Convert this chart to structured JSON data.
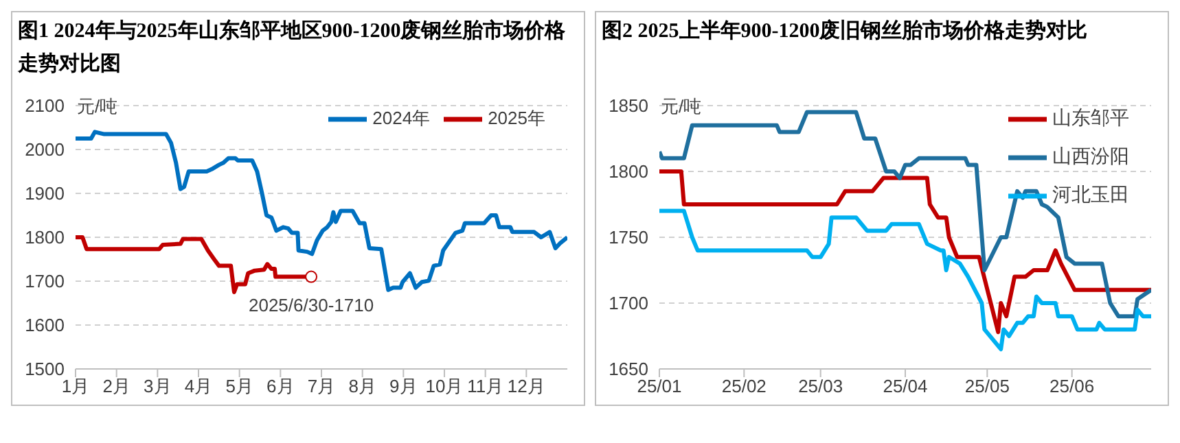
{
  "chart_data": [
    {
      "type": "line",
      "title": "图1 2024年与2025年山东邹平地区900-1200废钢丝胎市场价格走势对比图",
      "ylabel": "元/吨",
      "xlim": [
        1,
        13
      ],
      "xticks": [
        {
          "value": 1,
          "label": "1月"
        },
        {
          "value": 2,
          "label": "2月"
        },
        {
          "value": 3,
          "label": "3月"
        },
        {
          "value": 4,
          "label": "4月"
        },
        {
          "value": 5,
          "label": "5月"
        },
        {
          "value": 6,
          "label": "6月"
        },
        {
          "value": 7,
          "label": "7月"
        },
        {
          "value": 8,
          "label": "8月"
        },
        {
          "value": 9,
          "label": "9月"
        },
        {
          "value": 10,
          "label": "10月"
        },
        {
          "value": 11,
          "label": "11月"
        },
        {
          "value": 12,
          "label": "12月"
        }
      ],
      "ylim": [
        1500,
        2100
      ],
      "yticks": [
        1500,
        1600,
        1700,
        1800,
        1900,
        2000,
        2100
      ],
      "grid": "y",
      "legend": "top right",
      "line_style": "solid",
      "series": [
        {
          "name": "2024年",
          "color": "#0070c0",
          "x": [
            1,
            1.38,
            1.47,
            1.7,
            3.21,
            3.33,
            3.45,
            3.56,
            3.65,
            3.76,
            4.2,
            4.32,
            4.5,
            4.61,
            4.73,
            4.9,
            4.96,
            5.31,
            5.43,
            5.55,
            5.66,
            5.78,
            5.9,
            6.07,
            6.19,
            6.28,
            6.42,
            6.44,
            6.65,
            6.77,
            6.89,
            7.03,
            7.14,
            7.24,
            7.29,
            7.35,
            7.47,
            7.76,
            7.93,
            8.05,
            8.17,
            8.46,
            8.63,
            8.75,
            8.93,
            8.98,
            9.16,
            9.3,
            9.45,
            9.62,
            9.74,
            9.89,
            9.97,
            10.27,
            10.44,
            10.5,
            10.97,
            11.14,
            11.26,
            11.34,
            11.61,
            11.66,
            12.19,
            12.36,
            12.57,
            12.71,
            12.83,
            13
          ],
          "values": [
            2025,
            2025,
            2040,
            2035,
            2035,
            2015,
            1970,
            1910,
            1915,
            1950,
            1950,
            1955,
            1965,
            1970,
            1980,
            1980,
            1975,
            1975,
            1950,
            1900,
            1850,
            1845,
            1815,
            1823,
            1820,
            1810,
            1810,
            1770,
            1767,
            1762,
            1793,
            1815,
            1823,
            1835,
            1857,
            1835,
            1860,
            1860,
            1832,
            1832,
            1775,
            1773,
            1680,
            1685,
            1685,
            1698,
            1718,
            1685,
            1698,
            1701,
            1735,
            1738,
            1770,
            1810,
            1815,
            1832,
            1832,
            1850,
            1850,
            1823,
            1823,
            1812,
            1812,
            1800,
            1812,
            1775,
            1787,
            1800
          ]
        },
        {
          "name": "2025年",
          "color": "#c00000",
          "x": [
            1,
            1.17,
            1.27,
            3.04,
            3.13,
            3.56,
            3.62,
            4.07,
            4.23,
            4.38,
            4.5,
            4.79,
            4.87,
            4.94,
            5.14,
            5.21,
            5.37,
            5.6,
            5.68,
            5.78,
            5.86,
            5.88,
            6.75
          ],
          "values": [
            1800,
            1800,
            1773,
            1773,
            1783,
            1785,
            1796,
            1796,
            1770,
            1750,
            1735,
            1735,
            1675,
            1693,
            1693,
            1718,
            1724,
            1726,
            1739,
            1728,
            1728,
            1710,
            1710
          ]
        }
      ],
      "annotations": [
        {
          "text": "2025/6/30-1710",
          "x": 6.75,
          "y": 1710
        }
      ]
    },
    {
      "type": "line",
      "title": "图2 2025上半年900-1200废旧钢丝胎市场价格走势对比",
      "ylabel": "元/吨",
      "xlim": [
        "2025-01-01",
        "2025-06-30"
      ],
      "xticks": [
        {
          "value": "2025-01-01",
          "label": "25/01"
        },
        {
          "value": "2025-02-01",
          "label": "25/02"
        },
        {
          "value": "2025-03-01",
          "label": "25/03"
        },
        {
          "value": "2025-04-01",
          "label": "25/04"
        },
        {
          "value": "2025-05-01",
          "label": "25/05"
        },
        {
          "value": "2025-06-01",
          "label": "25/06"
        }
      ],
      "ylim": [
        1650,
        1850
      ],
      "yticks": [
        1650,
        1700,
        1750,
        1800,
        1850
      ],
      "grid": "y",
      "legend": "top right",
      "line_style": "solid",
      "series": [
        {
          "name": "山东邹平",
          "color": "#c00000",
          "x": [
            "2025-01-01",
            "2025-01-09",
            "2025-01-10",
            "2025-03-07",
            "2025-03-10",
            "2025-03-20",
            "2025-03-24",
            "2025-04-09",
            "2025-04-10",
            "2025-04-13",
            "2025-04-16",
            "2025-04-17",
            "2025-04-20",
            "2025-04-28",
            "2025-05-05",
            "2025-05-06",
            "2025-05-08",
            "2025-05-11",
            "2025-05-15",
            "2025-05-18",
            "2025-05-23",
            "2025-05-26",
            "2025-05-28",
            "2025-06-02",
            "2025-06-30"
          ],
          "values": [
            1800,
            1800,
            1775,
            1775,
            1785,
            1785,
            1795,
            1795,
            1775,
            1765,
            1765,
            1750,
            1735,
            1735,
            1678,
            1700,
            1690,
            1720,
            1720,
            1725,
            1725,
            1740,
            1730,
            1710,
            1710
          ]
        },
        {
          "name": "山西汾阳",
          "color": "#1f6f9e",
          "x": [
            "2025-01-01",
            "2025-01-02",
            "2025-01-10",
            "2025-01-13",
            "2025-02-13",
            "2025-02-14",
            "2025-02-21",
            "2025-02-24",
            "2025-03-14",
            "2025-03-17",
            "2025-03-21",
            "2025-03-25",
            "2025-03-28",
            "2025-03-30",
            "2025-04-01",
            "2025-04-03",
            "2025-04-06",
            "2025-04-23",
            "2025-04-24",
            "2025-04-27",
            "2025-04-30",
            "2025-05-06",
            "2025-05-08",
            "2025-05-12",
            "2025-05-14",
            "2025-05-15",
            "2025-05-19",
            "2025-05-21",
            "2025-05-23",
            "2025-05-27",
            "2025-05-30",
            "2025-06-02",
            "2025-06-12",
            "2025-06-15",
            "2025-06-18",
            "2025-06-24",
            "2025-06-25",
            "2025-06-30"
          ],
          "values": [
            1815,
            1810,
            1810,
            1835,
            1835,
            1830,
            1830,
            1845,
            1845,
            1825,
            1825,
            1800,
            1800,
            1795,
            1805,
            1805,
            1810,
            1810,
            1805,
            1805,
            1725,
            1750,
            1750,
            1785,
            1780,
            1785,
            1785,
            1775,
            1773,
            1765,
            1735,
            1730,
            1730,
            1700,
            1690,
            1690,
            1703,
            1710
          ]
        },
        {
          "name": "河北玉田",
          "color": "#00b0f0",
          "x": [
            "2025-01-01",
            "2025-01-10",
            "2025-01-13",
            "2025-01-15",
            "2025-02-24",
            "2025-02-26",
            "2025-03-01",
            "2025-03-04",
            "2025-03-05",
            "2025-03-14",
            "2025-03-18",
            "2025-03-25",
            "2025-03-27",
            "2025-04-06",
            "2025-04-09",
            "2025-04-14",
            "2025-04-15",
            "2025-04-16",
            "2025-04-17",
            "2025-04-21",
            "2025-04-24",
            "2025-04-29",
            "2025-04-30",
            "2025-05-06",
            "2025-05-07",
            "2025-05-09",
            "2025-05-12",
            "2025-05-14",
            "2025-05-16",
            "2025-05-18",
            "2025-05-19",
            "2025-05-21",
            "2025-05-26",
            "2025-05-27",
            "2025-06-01",
            "2025-06-03",
            "2025-06-10",
            "2025-06-11",
            "2025-06-13",
            "2025-06-24",
            "2025-06-25",
            "2025-06-27",
            "2025-06-30"
          ],
          "values": [
            1770,
            1770,
            1750,
            1740,
            1740,
            1735,
            1735,
            1745,
            1765,
            1765,
            1755,
            1755,
            1760,
            1760,
            1745,
            1740,
            1740,
            1725,
            1735,
            1730,
            1720,
            1700,
            1680,
            1665,
            1680,
            1675,
            1685,
            1685,
            1690,
            1690,
            1705,
            1700,
            1700,
            1690,
            1690,
            1680,
            1680,
            1685,
            1680,
            1680,
            1695,
            1690,
            1690
          ]
        }
      ]
    }
  ]
}
